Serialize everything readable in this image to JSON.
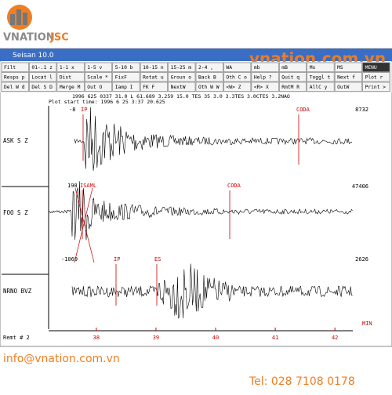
{
  "logo": {
    "brand": "VNATION",
    "suffix": "JSC"
  },
  "watermark": "vnation.com.vn",
  "window": {
    "title": "Seisan 10.0"
  },
  "buttons": [
    [
      "Filt",
      "01-.1 z",
      "1-1 x",
      "1-5 v",
      "5-10 b",
      "10-15 n",
      "15-25 m",
      "2-4 ,",
      "WA",
      "mb",
      "mB",
      "Ms",
      "MS",
      "MENU"
    ],
    [
      "Resps p",
      "Locat l",
      "Dist",
      "Scale *",
      "FixF",
      "Rotat u",
      "Groun o",
      "Back B",
      "Oth C o",
      "Help ?",
      "Quit q",
      "Toggl t",
      "Next f",
      "Plot r"
    ],
    [
      "Del W d",
      "Del S D",
      "Merge M",
      "Out O",
      "Iamp I",
      "FK F",
      "NextW",
      "Oth W W",
      "<W> Z",
      "<R> X",
      "RmtM R",
      "AllC y",
      "OutW",
      "Print >"
    ]
  ],
  "header_lines": [
    "1996  625 0337 31.0 L  61.689   3.259 15.0  TES 35 3.0 3.3TES 3.0CTES 3.2NAO",
    "Plot start time: 1996  6 25  3:37  20.625"
  ],
  "traces": [
    {
      "station": "ASK  S Z",
      "max_amplitude": "8732",
      "labels": [
        "-8",
        "IP",
        "CODA"
      ]
    },
    {
      "station": "FOO  S Z",
      "max_amplitude": "47406",
      "labels": [
        "198",
        "ISAML",
        "CODA"
      ]
    },
    {
      "station": "NRNO BVZ",
      "max_amplitude": "2626",
      "labels": [
        "-1069",
        "IP",
        "ES"
      ]
    }
  ],
  "time_axis": {
    "xlim": [
      37.2,
      42.3
    ],
    "ticks": [
      38,
      39,
      40,
      41,
      42
    ],
    "unit_label": "MIN"
  },
  "status": "Remt #  2",
  "footer": {
    "email": "info@vnation.com.vn",
    "phone": "Tel: 028 7108 0178"
  }
}
